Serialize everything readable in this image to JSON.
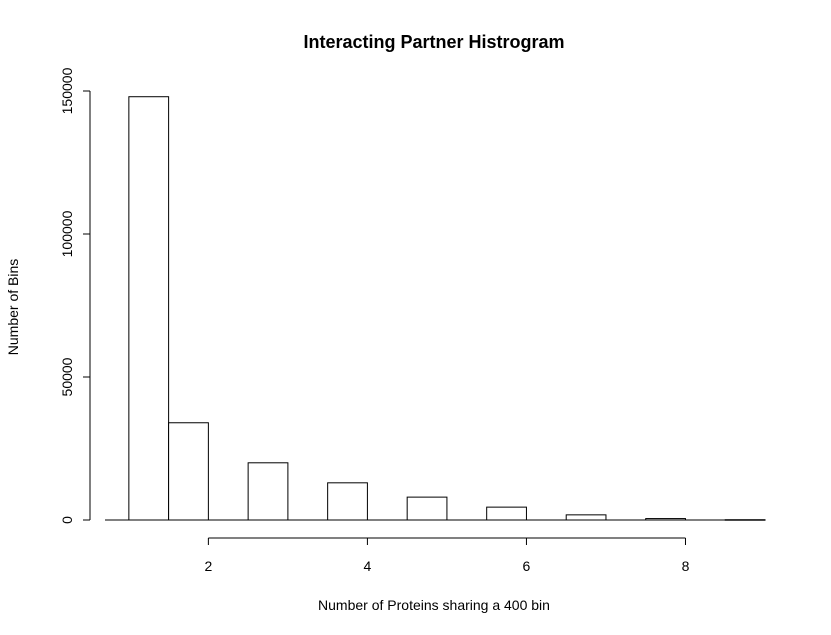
{
  "chart_data": {
    "type": "bar",
    "title": "Interacting Partner Histrogram",
    "xlabel": "Number of Proteins sharing a 400 bin",
    "ylabel": "Number of Bins",
    "x_axis_range": [
      0.7,
      9.0
    ],
    "y_axis_range": [
      0,
      150000
    ],
    "x_ticks": [
      2,
      4,
      6,
      8
    ],
    "x_tick_labels": [
      "2",
      "4",
      "6",
      "8"
    ],
    "y_ticks": [
      0,
      50000,
      100000,
      150000
    ],
    "y_tick_labels": [
      "0",
      "50000",
      "100000",
      "150000"
    ],
    "bars": [
      {
        "start": 1.0,
        "end": 1.5,
        "value": 148000
      },
      {
        "start": 1.5,
        "end": 2.0,
        "value": 34000
      },
      {
        "start": 2.5,
        "end": 3.0,
        "value": 20000
      },
      {
        "start": 3.5,
        "end": 4.0,
        "value": 13000
      },
      {
        "start": 4.5,
        "end": 5.0,
        "value": 8000
      },
      {
        "start": 5.5,
        "end": 6.0,
        "value": 4500
      },
      {
        "start": 6.5,
        "end": 7.0,
        "value": 1800
      },
      {
        "start": 7.5,
        "end": 8.0,
        "value": 500
      },
      {
        "start": 8.5,
        "end": 9.0,
        "value": 100
      }
    ],
    "grid": false,
    "legend": "none"
  }
}
